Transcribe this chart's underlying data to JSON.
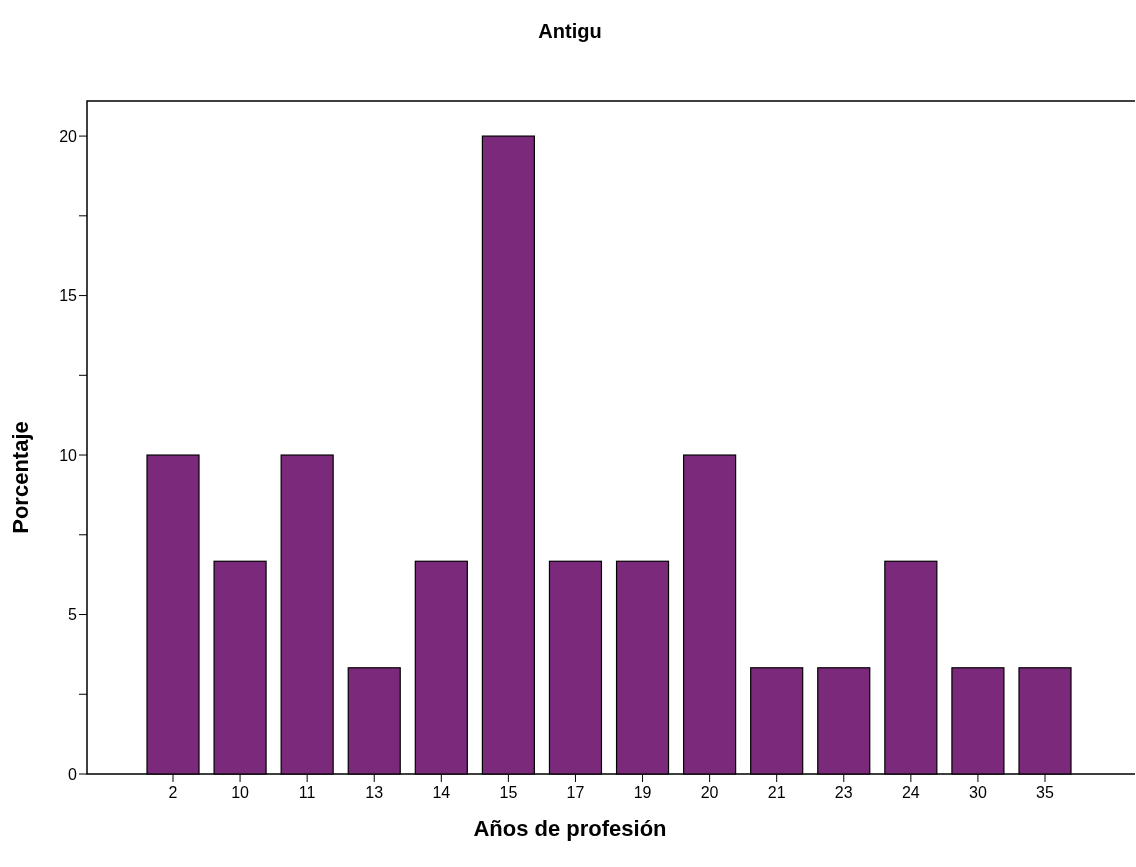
{
  "chart_data": {
    "type": "bar",
    "title": "Antigu",
    "xlabel": "Años de profesión",
    "ylabel": "Porcentaje",
    "categories": [
      "2",
      "10",
      "11",
      "13",
      "14",
      "15",
      "17",
      "19",
      "20",
      "21",
      "23",
      "24",
      "30",
      "35"
    ],
    "values": [
      10,
      6.67,
      10,
      3.33,
      6.67,
      20,
      6.67,
      6.67,
      10,
      3.33,
      3.33,
      6.67,
      3.33,
      3.33
    ],
    "color": "#7b2a7b",
    "ylim": [
      0,
      21.1
    ],
    "yticks": [
      0,
      {
        "value": 2.5,
        "label": null
      },
      5,
      {
        "value": 7.5,
        "label": null
      },
      10,
      {
        "value": 12.5,
        "label": null
      },
      15,
      {
        "value": 17.5,
        "label": null
      },
      20
    ],
    "grid": false
  }
}
